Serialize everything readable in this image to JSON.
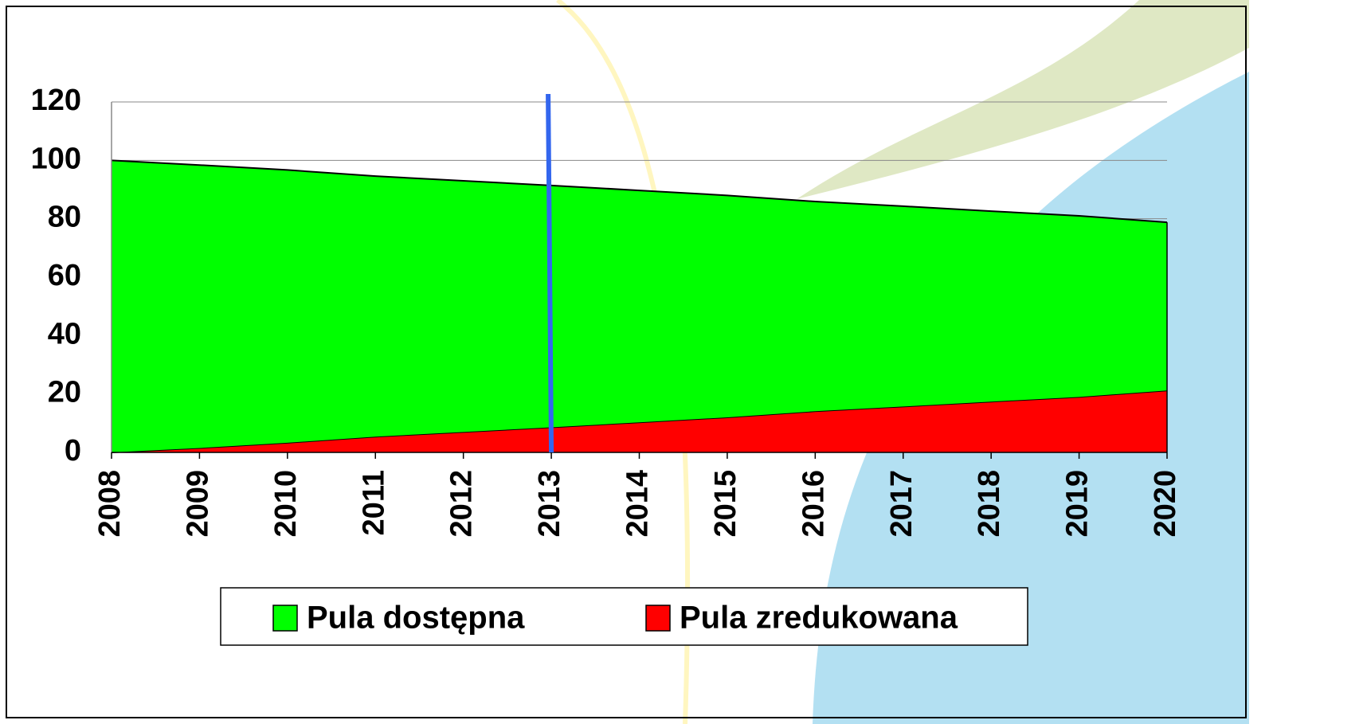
{
  "chart_data": {
    "type": "stacked_area",
    "categories": [
      "2008",
      "2009",
      "2010",
      "2011",
      "2012",
      "2013",
      "2014",
      "2015",
      "2016",
      "2017",
      "2018",
      "2019",
      "2020"
    ],
    "series": [
      {
        "name": "Pula dostępna",
        "color": "#00ff00",
        "values": [
          100,
          96.9,
          93.4,
          89.2,
          86,
          82.8,
          79.4,
          76,
          71.8,
          68.6,
          65.2,
          62,
          57.6
        ]
      },
      {
        "name": "Pula zredukowana",
        "color": "#ff0000",
        "values": [
          0,
          1.5,
          3.3,
          5.4,
          7,
          8.6,
          10.3,
          12,
          14.1,
          15.7,
          17.4,
          19,
          21.2
        ]
      }
    ],
    "ylim": [
      0,
      120
    ],
    "yticks": [
      0,
      20,
      40,
      60,
      80,
      100,
      120
    ],
    "grid": true,
    "vline": {
      "at": "2013",
      "color": "#3366ee"
    },
    "legend": "bottom"
  }
}
